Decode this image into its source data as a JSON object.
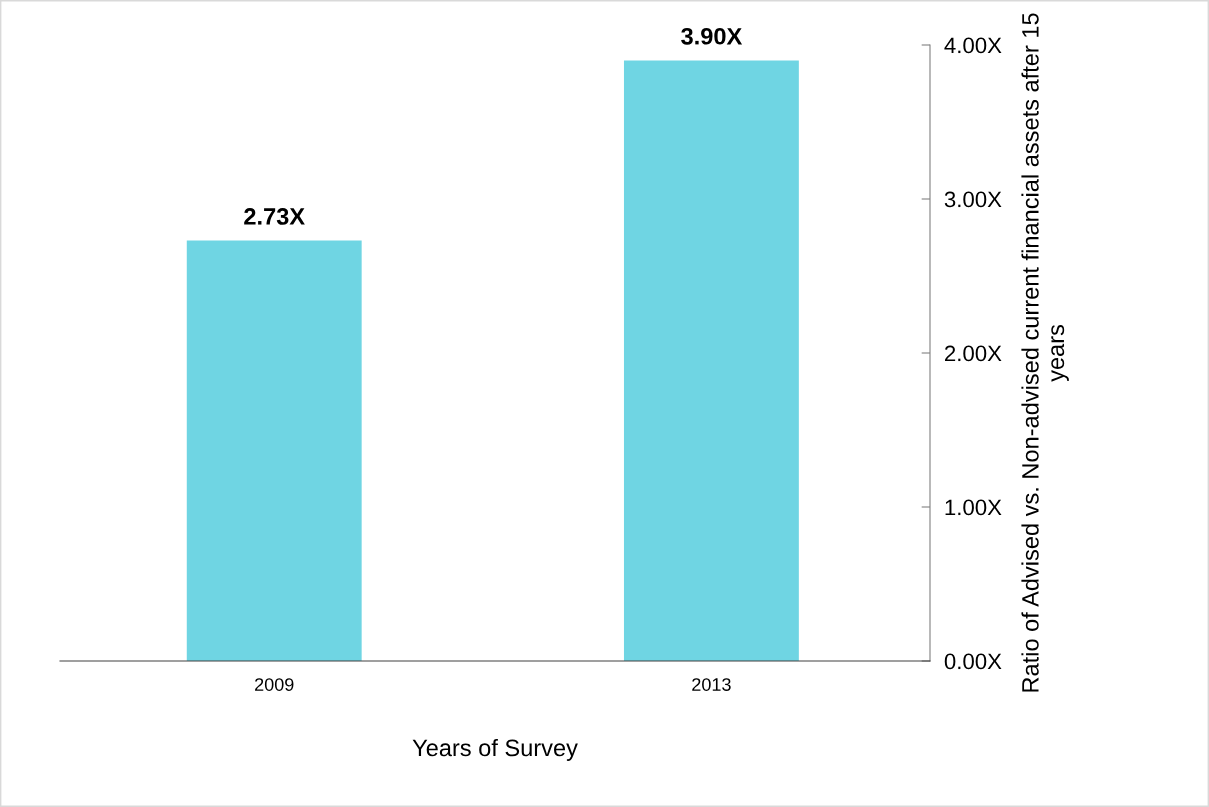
{
  "chart_data": {
    "type": "bar",
    "categories": [
      "2009",
      "2013"
    ],
    "values": [
      2.73,
      3.9
    ],
    "value_labels": [
      "2.73X",
      "3.90X"
    ],
    "color": "#6fd5e3",
    "xlabel": "Years of Survey",
    "ylabel": "Ratio of Advised vs. Non-advised current financial assets after 15 years",
    "ylim": [
      0,
      4
    ],
    "yticks": [
      {
        "value": 0,
        "label": "0.00X"
      },
      {
        "value": 1,
        "label": "1.00X"
      },
      {
        "value": 2,
        "label": "2.00X"
      },
      {
        "value": 3,
        "label": "3.00X"
      },
      {
        "value": 4,
        "label": "4.00X"
      }
    ],
    "grid": false
  }
}
